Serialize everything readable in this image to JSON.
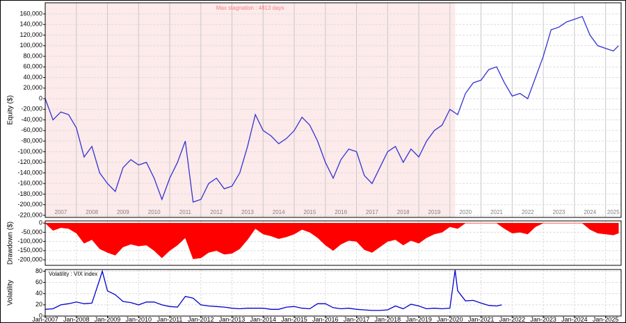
{
  "chart_data": [
    {
      "type": "line",
      "ylabel": "Equity ($)",
      "color": "#3232d2",
      "annotation": "Max stagnation : 4813 days",
      "shade": [
        "2007-01",
        "2020-03"
      ],
      "shade_color": "#fdeaea",
      "xlim": [
        "2007-01",
        "2025-07"
      ],
      "year_labels": [
        2007,
        2008,
        2009,
        2010,
        2011,
        2012,
        2013,
        2014,
        2015,
        2016,
        2017,
        2018,
        2019,
        2020,
        2021,
        2022,
        2023,
        2024,
        2025
      ],
      "ylim": [
        -224000,
        181000
      ],
      "yticks": [
        {
          "value": 160000,
          "label": "160,000"
        },
        {
          "value": 140000,
          "label": "140,000"
        },
        {
          "value": 120000,
          "label": "120,000"
        },
        {
          "value": 100000,
          "label": "100,000"
        },
        {
          "value": 80000,
          "label": "80,000"
        },
        {
          "value": 60000,
          "label": "60,000"
        },
        {
          "value": 40000,
          "label": "40,000"
        },
        {
          "value": 20000,
          "label": "20,000"
        },
        0,
        {
          "value": -20000,
          "label": "-20,000"
        },
        {
          "value": -40000,
          "label": "-40,000"
        },
        {
          "value": -60000,
          "label": "-60,000"
        },
        {
          "value": -80000,
          "label": "-80,000"
        },
        {
          "value": -100000,
          "label": "-100,000"
        },
        {
          "value": -120000,
          "label": "-120,000"
        },
        {
          "value": -140000,
          "label": "-140,000"
        },
        {
          "value": -160000,
          "label": "-160,000"
        },
        {
          "value": -180000,
          "label": "-180,000"
        },
        {
          "value": -200000,
          "label": "-200,000"
        },
        {
          "value": -220000,
          "label": "-220,000"
        }
      ],
      "x": [
        "2007-01",
        "2007-04",
        "2007-07",
        "2007-10",
        "2008-01",
        "2008-04",
        "2008-07",
        "2008-10",
        "2009-01",
        "2009-04",
        "2009-07",
        "2009-10",
        "2010-01",
        "2010-04",
        "2010-07",
        "2010-10",
        "2011-01",
        "2011-04",
        "2011-07",
        "2011-10",
        "2012-01",
        "2012-04",
        "2012-07",
        "2012-10",
        "2013-01",
        "2013-04",
        "2013-07",
        "2013-10",
        "2014-01",
        "2014-04",
        "2014-07",
        "2014-10",
        "2015-01",
        "2015-04",
        "2015-07",
        "2015-10",
        "2016-01",
        "2016-04",
        "2016-07",
        "2016-10",
        "2017-01",
        "2017-04",
        "2017-07",
        "2017-10",
        "2018-01",
        "2018-04",
        "2018-07",
        "2018-10",
        "2019-01",
        "2019-04",
        "2019-07",
        "2019-10",
        "2020-01",
        "2020-04",
        "2020-07",
        "2020-10",
        "2021-01",
        "2021-04",
        "2021-07",
        "2021-10",
        "2022-01",
        "2022-04",
        "2022-07",
        "2022-10",
        "2023-01",
        "2023-04",
        "2023-07",
        "2023-10",
        "2024-01",
        "2024-04",
        "2024-07",
        "2024-10",
        "2025-01",
        "2025-04",
        "2025-06"
      ],
      "values": [
        0,
        -40000,
        -25000,
        -30000,
        -55000,
        -110000,
        -90000,
        -140000,
        -160000,
        -175000,
        -130000,
        -115000,
        -125000,
        -120000,
        -150000,
        -190000,
        -150000,
        -120000,
        -80000,
        -195000,
        -190000,
        -160000,
        -150000,
        -170000,
        -165000,
        -140000,
        -90000,
        -30000,
        -60000,
        -70000,
        -85000,
        -75000,
        -60000,
        -35000,
        -50000,
        -80000,
        -120000,
        -150000,
        -115000,
        -95000,
        -100000,
        -145000,
        -160000,
        -130000,
        -100000,
        -90000,
        -120000,
        -95000,
        -110000,
        -80000,
        -60000,
        -50000,
        -20000,
        -30000,
        10000,
        30000,
        35000,
        55000,
        60000,
        30000,
        5000,
        10000,
        0,
        40000,
        80000,
        130000,
        135000,
        145000,
        150000,
        155000,
        120000,
        100000,
        95000,
        90000,
        100000
      ]
    },
    {
      "type": "area",
      "ylabel": "Drawdown ($)",
      "color": "#ff0000",
      "xlim": [
        "2007-01",
        "2025-07"
      ],
      "ylim": [
        -230000,
        12000
      ],
      "yticks": [
        0,
        {
          "value": -50000,
          "label": "-50,000"
        },
        {
          "value": -100000,
          "label": "-100,000"
        },
        {
          "value": -150000,
          "label": "-150,000"
        },
        {
          "value": -200000,
          "label": "-200,000"
        }
      ],
      "x": [
        "2007-01",
        "2007-04",
        "2007-07",
        "2007-10",
        "2008-01",
        "2008-04",
        "2008-07",
        "2008-10",
        "2009-01",
        "2009-04",
        "2009-07",
        "2009-10",
        "2010-01",
        "2010-04",
        "2010-07",
        "2010-10",
        "2011-01",
        "2011-04",
        "2011-07",
        "2011-10",
        "2012-01",
        "2012-04",
        "2012-07",
        "2012-10",
        "2013-01",
        "2013-04",
        "2013-07",
        "2013-10",
        "2014-01",
        "2014-04",
        "2014-07",
        "2014-10",
        "2015-01",
        "2015-04",
        "2015-07",
        "2015-10",
        "2016-01",
        "2016-04",
        "2016-07",
        "2016-10",
        "2017-01",
        "2017-04",
        "2017-07",
        "2017-10",
        "2018-01",
        "2018-04",
        "2018-07",
        "2018-10",
        "2019-01",
        "2019-04",
        "2019-07",
        "2019-10",
        "2020-01",
        "2020-04",
        "2020-07",
        "2020-10",
        "2021-01",
        "2021-04",
        "2021-07",
        "2021-10",
        "2022-01",
        "2022-04",
        "2022-07",
        "2022-10",
        "2023-01",
        "2023-04",
        "2023-07",
        "2023-10",
        "2024-01",
        "2024-04",
        "2024-07",
        "2024-10",
        "2025-01",
        "2025-04",
        "2025-06"
      ],
      "values": [
        0,
        -40000,
        -25000,
        -30000,
        -55000,
        -110000,
        -90000,
        -140000,
        -160000,
        -175000,
        -130000,
        -115000,
        -125000,
        -120000,
        -150000,
        -190000,
        -150000,
        -120000,
        -80000,
        -195000,
        -190000,
        -160000,
        -150000,
        -170000,
        -165000,
        -140000,
        -90000,
        -30000,
        -60000,
        -70000,
        -85000,
        -75000,
        -60000,
        -35000,
        -50000,
        -80000,
        -120000,
        -150000,
        -115000,
        -95000,
        -100000,
        -145000,
        -160000,
        -130000,
        -100000,
        -90000,
        -120000,
        -95000,
        -110000,
        -80000,
        -60000,
        -50000,
        -20000,
        -30000,
        0,
        0,
        0,
        0,
        0,
        -30000,
        -55000,
        -50000,
        -60000,
        -20000,
        0,
        0,
        0,
        0,
        0,
        0,
        -35000,
        -55000,
        -60000,
        -65000,
        -55000
      ]
    },
    {
      "type": "line",
      "ylabel": "Volatility",
      "series": [
        {
          "name": "Volatility : VIX index",
          "color": "#0000d0"
        }
      ],
      "xlim": [
        "2007-01",
        "2025-07"
      ],
      "ylim": [
        0,
        83
      ],
      "yticks": [
        0,
        20,
        40,
        60,
        80
      ],
      "xticks": [
        {
          "value": "2007-01",
          "label": "Jan-2007"
        },
        {
          "value": "2008-01",
          "label": "Jan-2008"
        },
        {
          "value": "2009-01",
          "label": "Jan-2009"
        },
        {
          "value": "2010-01",
          "label": "Jan-2010"
        },
        {
          "value": "2011-01",
          "label": "Jan-2011"
        },
        {
          "value": "2012-01",
          "label": "Jan-2012"
        },
        {
          "value": "2013-01",
          "label": "Jan-2013"
        },
        {
          "value": "2014-01",
          "label": "Jan-2014"
        },
        {
          "value": "2015-01",
          "label": "Jan-2015"
        },
        {
          "value": "2016-01",
          "label": "Jan-2016"
        },
        {
          "value": "2017-01",
          "label": "Jan-2017"
        },
        {
          "value": "2018-01",
          "label": "Jan-2018"
        },
        {
          "value": "2019-01",
          "label": "Jan-2019"
        },
        {
          "value": "2020-01",
          "label": "Jan-2020"
        },
        {
          "value": "2021-01",
          "label": "Jan-2021"
        },
        {
          "value": "2022-01",
          "label": "Jan-2022"
        },
        {
          "value": "2023-01",
          "label": "Jan-2023"
        },
        {
          "value": "2024-01",
          "label": "Jan-2024"
        },
        {
          "value": "2025-01",
          "label": "Jan-2025"
        }
      ],
      "x": [
        "2007-01",
        "2007-04",
        "2007-07",
        "2007-10",
        "2008-01",
        "2008-04",
        "2008-07",
        "2008-10",
        "2008-11",
        "2009-01",
        "2009-04",
        "2009-07",
        "2009-10",
        "2010-01",
        "2010-04",
        "2010-07",
        "2010-10",
        "2011-01",
        "2011-04",
        "2011-07",
        "2011-10",
        "2012-01",
        "2012-04",
        "2012-07",
        "2012-10",
        "2013-01",
        "2013-04",
        "2013-07",
        "2013-10",
        "2014-01",
        "2014-04",
        "2014-07",
        "2014-10",
        "2015-01",
        "2015-04",
        "2015-07",
        "2015-10",
        "2016-01",
        "2016-04",
        "2016-07",
        "2016-10",
        "2017-01",
        "2017-04",
        "2017-07",
        "2017-10",
        "2018-01",
        "2018-04",
        "2018-07",
        "2018-10",
        "2019-01",
        "2019-04",
        "2019-07",
        "2019-10",
        "2020-01",
        "2020-03",
        "2020-04",
        "2020-07",
        "2020-10",
        "2021-01",
        "2021-04",
        "2021-07",
        "2021-09"
      ],
      "values": [
        12,
        13,
        20,
        22,
        25,
        22,
        23,
        65,
        80,
        45,
        38,
        26,
        24,
        20,
        25,
        25,
        20,
        17,
        16,
        35,
        32,
        20,
        18,
        17,
        16,
        14,
        13,
        14,
        14,
        14,
        12,
        12,
        16,
        17,
        14,
        13,
        22,
        22,
        15,
        13,
        14,
        12,
        11,
        10,
        10,
        11,
        18,
        13,
        21,
        18,
        13,
        14,
        13,
        14,
        82,
        45,
        27,
        28,
        23,
        19,
        18,
        20
      ]
    }
  ]
}
